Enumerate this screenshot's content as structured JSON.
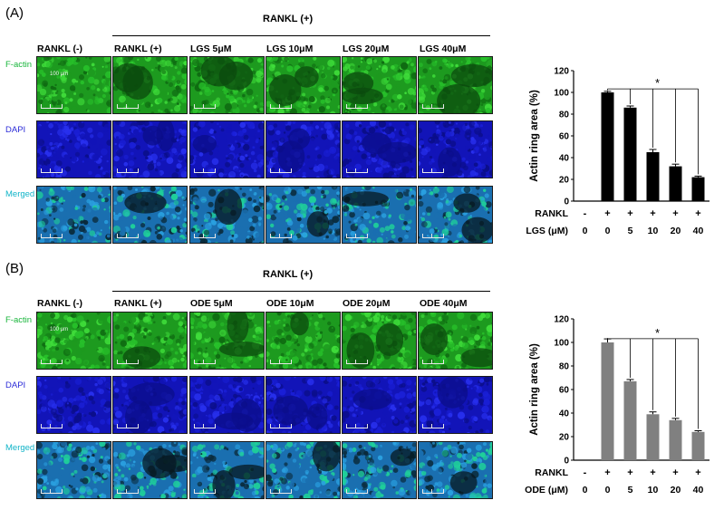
{
  "panels": [
    {
      "id": "A",
      "letter": "(A)",
      "rankl_plus_header": "RANKL (+)",
      "columns": [
        "RANKL (-)",
        "RANKL (+)",
        "LGS 5μM",
        "LGS 10μM",
        "LGS 20μM",
        "LGS 40μM"
      ],
      "rows": [
        {
          "label": "F-actin",
          "color": "#17b53a"
        },
        {
          "label": "DAPI",
          "color": "#2c2cd8"
        },
        {
          "label": "Merged",
          "color": "#12b4c8"
        }
      ],
      "scale_text": "100 μm",
      "chart_data": {
        "type": "bar",
        "ylabel": "Actin ring area (%)",
        "ylim": [
          0,
          120
        ],
        "yticks": [
          0,
          20,
          40,
          60,
          80,
          100,
          120
        ],
        "rankl_label": "RANKL",
        "rankl_values": [
          "-",
          "+",
          "+",
          "+",
          "+",
          "+"
        ],
        "dose_label": "LGS (μM)",
        "categories": [
          "0",
          "0",
          "5",
          "10",
          "20",
          "40"
        ],
        "values": [
          null,
          100,
          86,
          45,
          32,
          22
        ],
        "errors": [
          null,
          1,
          1.5,
          2.5,
          2,
          1
        ],
        "bar_color": "#000000",
        "significance": "*"
      }
    },
    {
      "id": "B",
      "letter": "(B)",
      "rankl_plus_header": "RANKL (+)",
      "columns": [
        "RANKL (-)",
        "RANKL (+)",
        "ODE 5μM",
        "ODE 10μM",
        "ODE 20μM",
        "ODE 40μM"
      ],
      "rows": [
        {
          "label": "F-actin",
          "color": "#17b53a"
        },
        {
          "label": "DAPI",
          "color": "#2c2cd8"
        },
        {
          "label": "Merged",
          "color": "#12b4c8"
        }
      ],
      "scale_text": "100 μm",
      "chart_data": {
        "type": "bar",
        "ylabel": "Actin ring area (%)",
        "ylim": [
          0,
          120
        ],
        "yticks": [
          0,
          20,
          40,
          60,
          80,
          100,
          120
        ],
        "rankl_label": "RANKL",
        "rankl_values": [
          "-",
          "+",
          "+",
          "+",
          "+",
          "+"
        ],
        "dose_label": "ODE (μM)",
        "categories": [
          "0",
          "0",
          "5",
          "10",
          "20",
          "40"
        ],
        "values": [
          null,
          100,
          67,
          39,
          34,
          24
        ],
        "errors": [
          null,
          3,
          1.5,
          2,
          1.5,
          1
        ],
        "bar_color": "#808080",
        "significance": "*"
      }
    }
  ]
}
